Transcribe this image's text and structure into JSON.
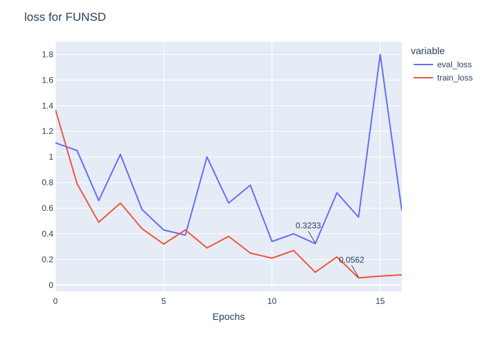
{
  "chart_data": {
    "type": "line",
    "title": "loss for FUNSD",
    "xlabel": "Epochs",
    "ylabel": "",
    "xlim": [
      0,
      16
    ],
    "ylim": [
      -0.05,
      1.9
    ],
    "x_ticks": [
      0,
      5,
      10,
      15
    ],
    "y_ticks": [
      0,
      0.2,
      0.4,
      0.6,
      0.8,
      1,
      1.2,
      1.4,
      1.6,
      1.8
    ],
    "grid": true,
    "legend": {
      "title": "variable",
      "placement": "right"
    },
    "series": [
      {
        "name": "eval_loss",
        "color": "#636efa",
        "x": [
          0,
          1,
          2,
          3,
          4,
          5,
          6,
          7,
          8,
          9,
          10,
          11,
          12,
          13,
          14,
          15,
          16
        ],
        "y": [
          1.11,
          1.05,
          0.66,
          1.02,
          0.59,
          0.43,
          0.39,
          1.0,
          0.64,
          0.78,
          0.34,
          0.4,
          0.3233,
          0.72,
          0.53,
          1.8,
          0.58
        ]
      },
      {
        "name": "train_loss",
        "color": "#ef553b",
        "x": [
          0,
          1,
          2,
          3,
          4,
          5,
          6,
          7,
          8,
          9,
          10,
          11,
          12,
          13,
          14,
          15,
          16
        ],
        "y": [
          1.37,
          0.79,
          0.49,
          0.64,
          0.44,
          0.32,
          0.43,
          0.29,
          0.38,
          0.25,
          0.21,
          0.27,
          0.1,
          0.22,
          0.0562,
          0.07,
          0.08
        ]
      }
    ],
    "annotations": [
      {
        "text": "0.3233",
        "x": 12,
        "y": 0.3233,
        "series": "eval_loss"
      },
      {
        "text": "0.0562",
        "x": 14,
        "y": 0.0562,
        "series": "train_loss"
      }
    ]
  }
}
